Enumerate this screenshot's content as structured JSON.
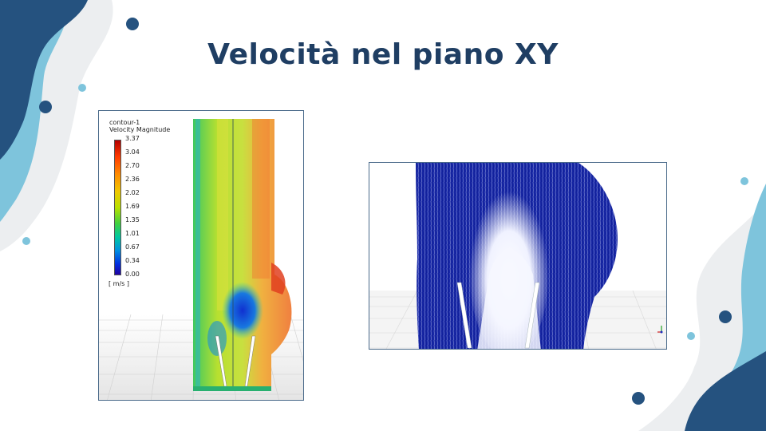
{
  "slide": {
    "title": "Velocità nel piano XY",
    "colors": {
      "title": "#1f3e63",
      "dark_blue": "#25527f",
      "light_blue": "#7ec4dc",
      "pale_gray": "#eceef0"
    }
  },
  "contour_panel": {
    "name": "contour-1",
    "quantity": "Velocity Magnitude",
    "unit": "[ m/s ]",
    "ticks": [
      "3.37",
      "3.04",
      "2.70",
      "2.36",
      "2.02",
      "1.69",
      "1.35",
      "1.01",
      "0.67",
      "0.34",
      "0.00"
    ]
  },
  "vector_panel": {
    "icons": [
      "axis-triad-icon"
    ]
  }
}
